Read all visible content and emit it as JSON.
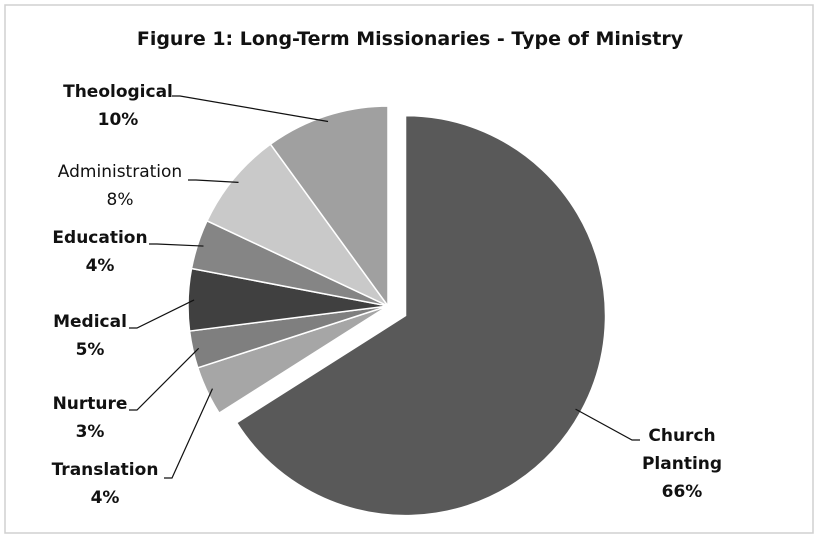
{
  "chart_data": {
    "type": "pie",
    "title": "Figure 1: Long-Term Missionaries - Type of Ministry",
    "categories": [
      "Church Planting",
      "Translation",
      "Nurture",
      "Medical",
      "Education",
      "Administration",
      "Theological"
    ],
    "values": [
      66,
      4,
      3,
      5,
      4,
      8,
      10
    ],
    "value_labels": [
      "66%",
      "4%",
      "3%",
      "5%",
      "4%",
      "8%",
      "10%"
    ],
    "colors": [
      "#595959",
      "#a6a6a6",
      "#7f7f7f",
      "#404040",
      "#858585",
      "#c9c9c9",
      "#a0a0a0"
    ],
    "exploded": "Church Planting"
  }
}
